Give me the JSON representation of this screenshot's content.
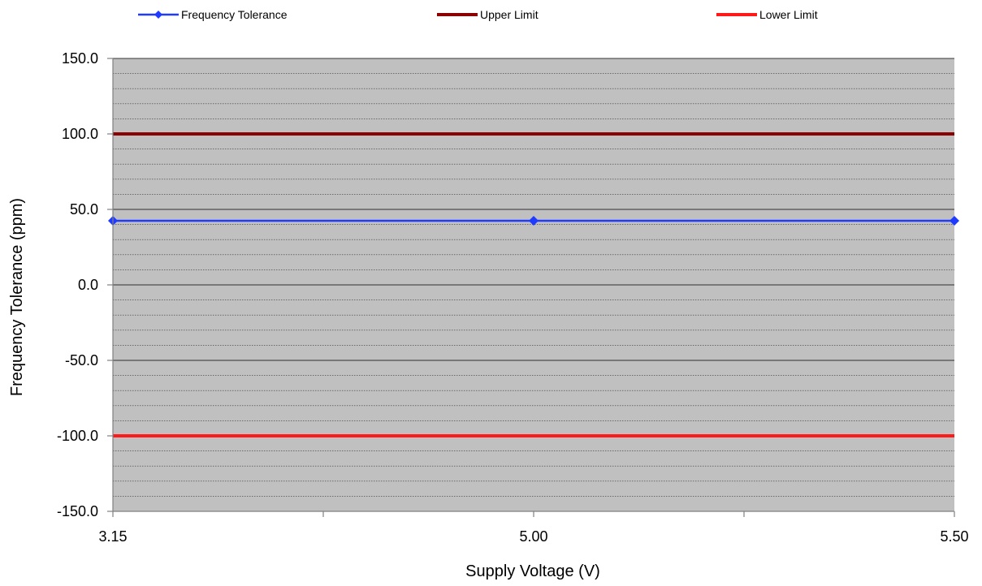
{
  "chart_data": {
    "type": "line",
    "title": "",
    "xlabel": "Supply Voltage (V)",
    "ylabel": "Frequency Tolerance (ppm)",
    "categories": [
      "3.15",
      "5.00",
      "5.50"
    ],
    "x_tick_labels": [
      "3.15",
      "5.00",
      "5.50"
    ],
    "ylim": [
      -150.0,
      150.0
    ],
    "y_tick_labels": [
      "150.0",
      "100.0",
      "50.0",
      "0.0",
      "-50.0",
      "-100.0",
      "-150.0"
    ],
    "y_major_ticks": [
      150,
      100,
      50,
      0,
      -50,
      -100,
      -150
    ],
    "y_minor_step": 10,
    "grid": true,
    "plot_background": "#c0c0c0",
    "legend_position": "top",
    "series": [
      {
        "name": "Frequency Tolerance",
        "values": [
          42.5,
          42.5,
          42.5
        ],
        "color": "#1f3bff",
        "marker": "diamond"
      },
      {
        "name": "Upper Limit",
        "values": [
          100.0,
          100.0,
          100.0
        ],
        "color": "#8b0000",
        "marker": "none"
      },
      {
        "name": "Lower Limit",
        "values": [
          -100.0,
          -100.0,
          -100.0
        ],
        "color": "#ff1a1a",
        "marker": "none"
      }
    ]
  }
}
